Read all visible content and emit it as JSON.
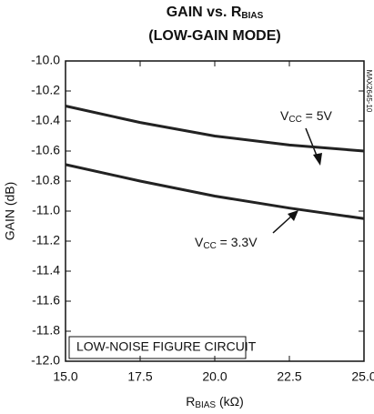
{
  "chart_data": {
    "type": "line",
    "title": [
      "GAIN vs. R",
      "BIAS"
    ],
    "subtitle": "(LOW-GAIN MODE)",
    "xlabel": [
      "R",
      "BIAS",
      " (kΩ)"
    ],
    "ylabel": "GAIN (dB)",
    "watermark": "MAX2645-10",
    "x": [
      15.0,
      17.5,
      20.0,
      22.5,
      25.0
    ],
    "series": [
      {
        "color": "#222222",
        "values": [
          -10.3,
          -10.41,
          -10.5,
          -10.56,
          -10.6
        ]
      },
      {
        "color": "#222222",
        "values": [
          -10.69,
          -10.8,
          -10.9,
          -10.98,
          -11.05
        ]
      }
    ],
    "annotations": [
      [
        "V",
        "CC",
        " = 5V"
      ],
      [
        "V",
        "CC",
        " = 3.3V"
      ],
      "LOW-NOISE FIGURE CIRCUIT"
    ],
    "xlim": [
      15,
      25
    ],
    "ylim": [
      -12,
      -10
    ],
    "xticks": [
      {
        "value": 15,
        "label": "15.0"
      },
      17.5,
      {
        "value": 20,
        "label": "20.0"
      },
      22.5,
      {
        "value": 25,
        "label": "25.0"
      }
    ],
    "yticks": [
      {
        "value": -12,
        "label": "-12.0"
      },
      {
        "value": -11.8,
        "label": "-11.8"
      },
      {
        "value": -11.6,
        "label": "-11.6"
      },
      {
        "value": -11.4,
        "label": "-11.4"
      },
      {
        "value": -11.2,
        "label": "-11.2"
      },
      {
        "value": -11,
        "label": "-11.0"
      },
      {
        "value": -10.8,
        "label": "-10.8"
      },
      {
        "value": -10.6,
        "label": "-10.6"
      },
      {
        "value": -10.4,
        "label": "-10.4"
      },
      {
        "value": -10.2,
        "label": "-10.2"
      },
      {
        "value": -10,
        "label": "-10.0"
      }
    ]
  }
}
